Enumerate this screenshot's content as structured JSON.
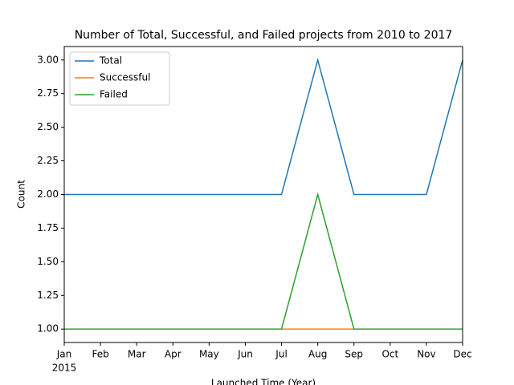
{
  "chart_data": {
    "type": "line",
    "title": "Number of Total, Successful, and Failed projects from 2010 to 2017",
    "x_label": "Launched Time (Year)",
    "y_label": "Count",
    "categories": [
      "Jan",
      "Feb",
      "Mar",
      "Apr",
      "May",
      "Jun",
      "Jul",
      "Aug",
      "Sep",
      "Oct",
      "Nov",
      "Dec"
    ],
    "year_label": "2015",
    "series": [
      {
        "name": "Total",
        "color": "#1f77b4",
        "values": [
          2,
          2,
          2,
          2,
          2,
          2,
          2,
          3,
          2,
          2,
          2,
          3
        ]
      },
      {
        "name": "Successful",
        "color": "#ff7f0e",
        "values": [
          1,
          1,
          1,
          1,
          1,
          1,
          1,
          1,
          1,
          1,
          1,
          1
        ]
      },
      {
        "name": "Failed",
        "color": "#2ca02c",
        "values": [
          1,
          1,
          1,
          1,
          1,
          1,
          1,
          2,
          1,
          1,
          1,
          1
        ]
      }
    ],
    "ylim": [
      0.9,
      3.1
    ],
    "yticks": [
      {
        "value": 1,
        "label": "1.00"
      },
      {
        "value": 1.25,
        "label": "1.25"
      },
      {
        "value": 1.5,
        "label": "1.50"
      },
      {
        "value": 1.75,
        "label": "1.75"
      },
      {
        "value": 2,
        "label": "2.00"
      },
      {
        "value": 2.25,
        "label": "2.25"
      },
      {
        "value": 2.5,
        "label": "2.50"
      },
      {
        "value": 2.75,
        "label": "2.75"
      },
      {
        "value": 3,
        "label": "3.00"
      }
    ],
    "grid": false,
    "legend": "upper left"
  }
}
